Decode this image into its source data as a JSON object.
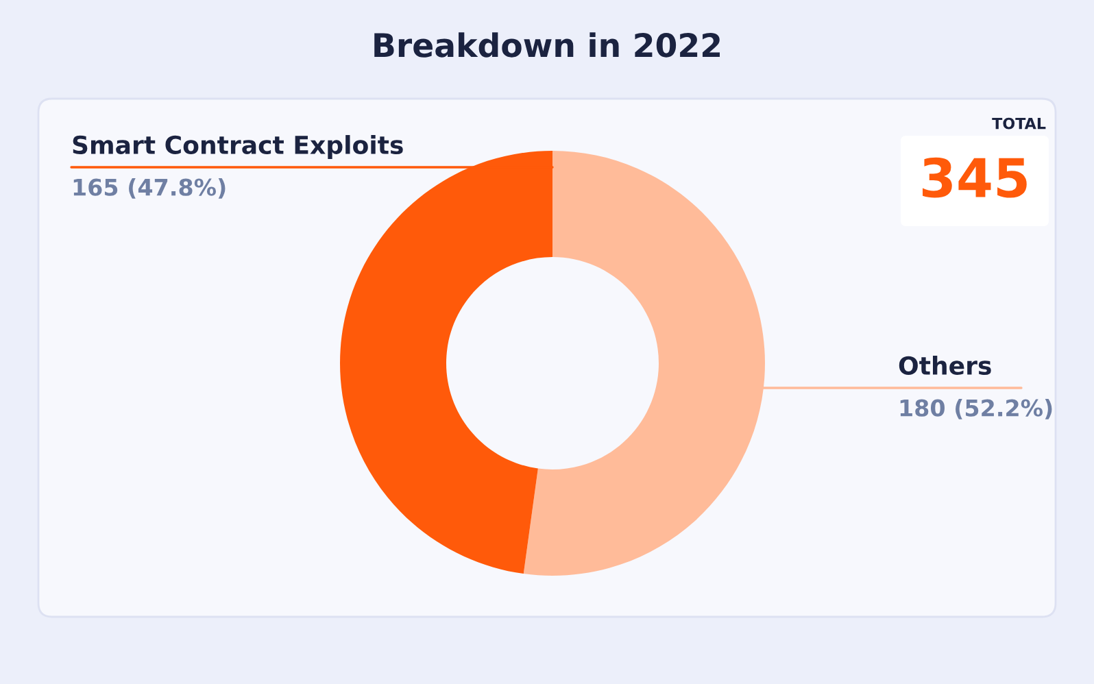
{
  "chart_data": {
    "type": "donut",
    "title": "Breakdown in 2022",
    "categories": [
      "Others",
      "Smart Contract Exploits"
    ],
    "values": [
      180,
      165
    ],
    "colors": [
      "#ffbb99",
      "#ff5a0a"
    ],
    "value_labels": [
      "180 (52.2%)",
      "165 (47.8%)"
    ],
    "annotations": [
      "TOTAL",
      "345"
    ],
    "legend": false
  }
}
